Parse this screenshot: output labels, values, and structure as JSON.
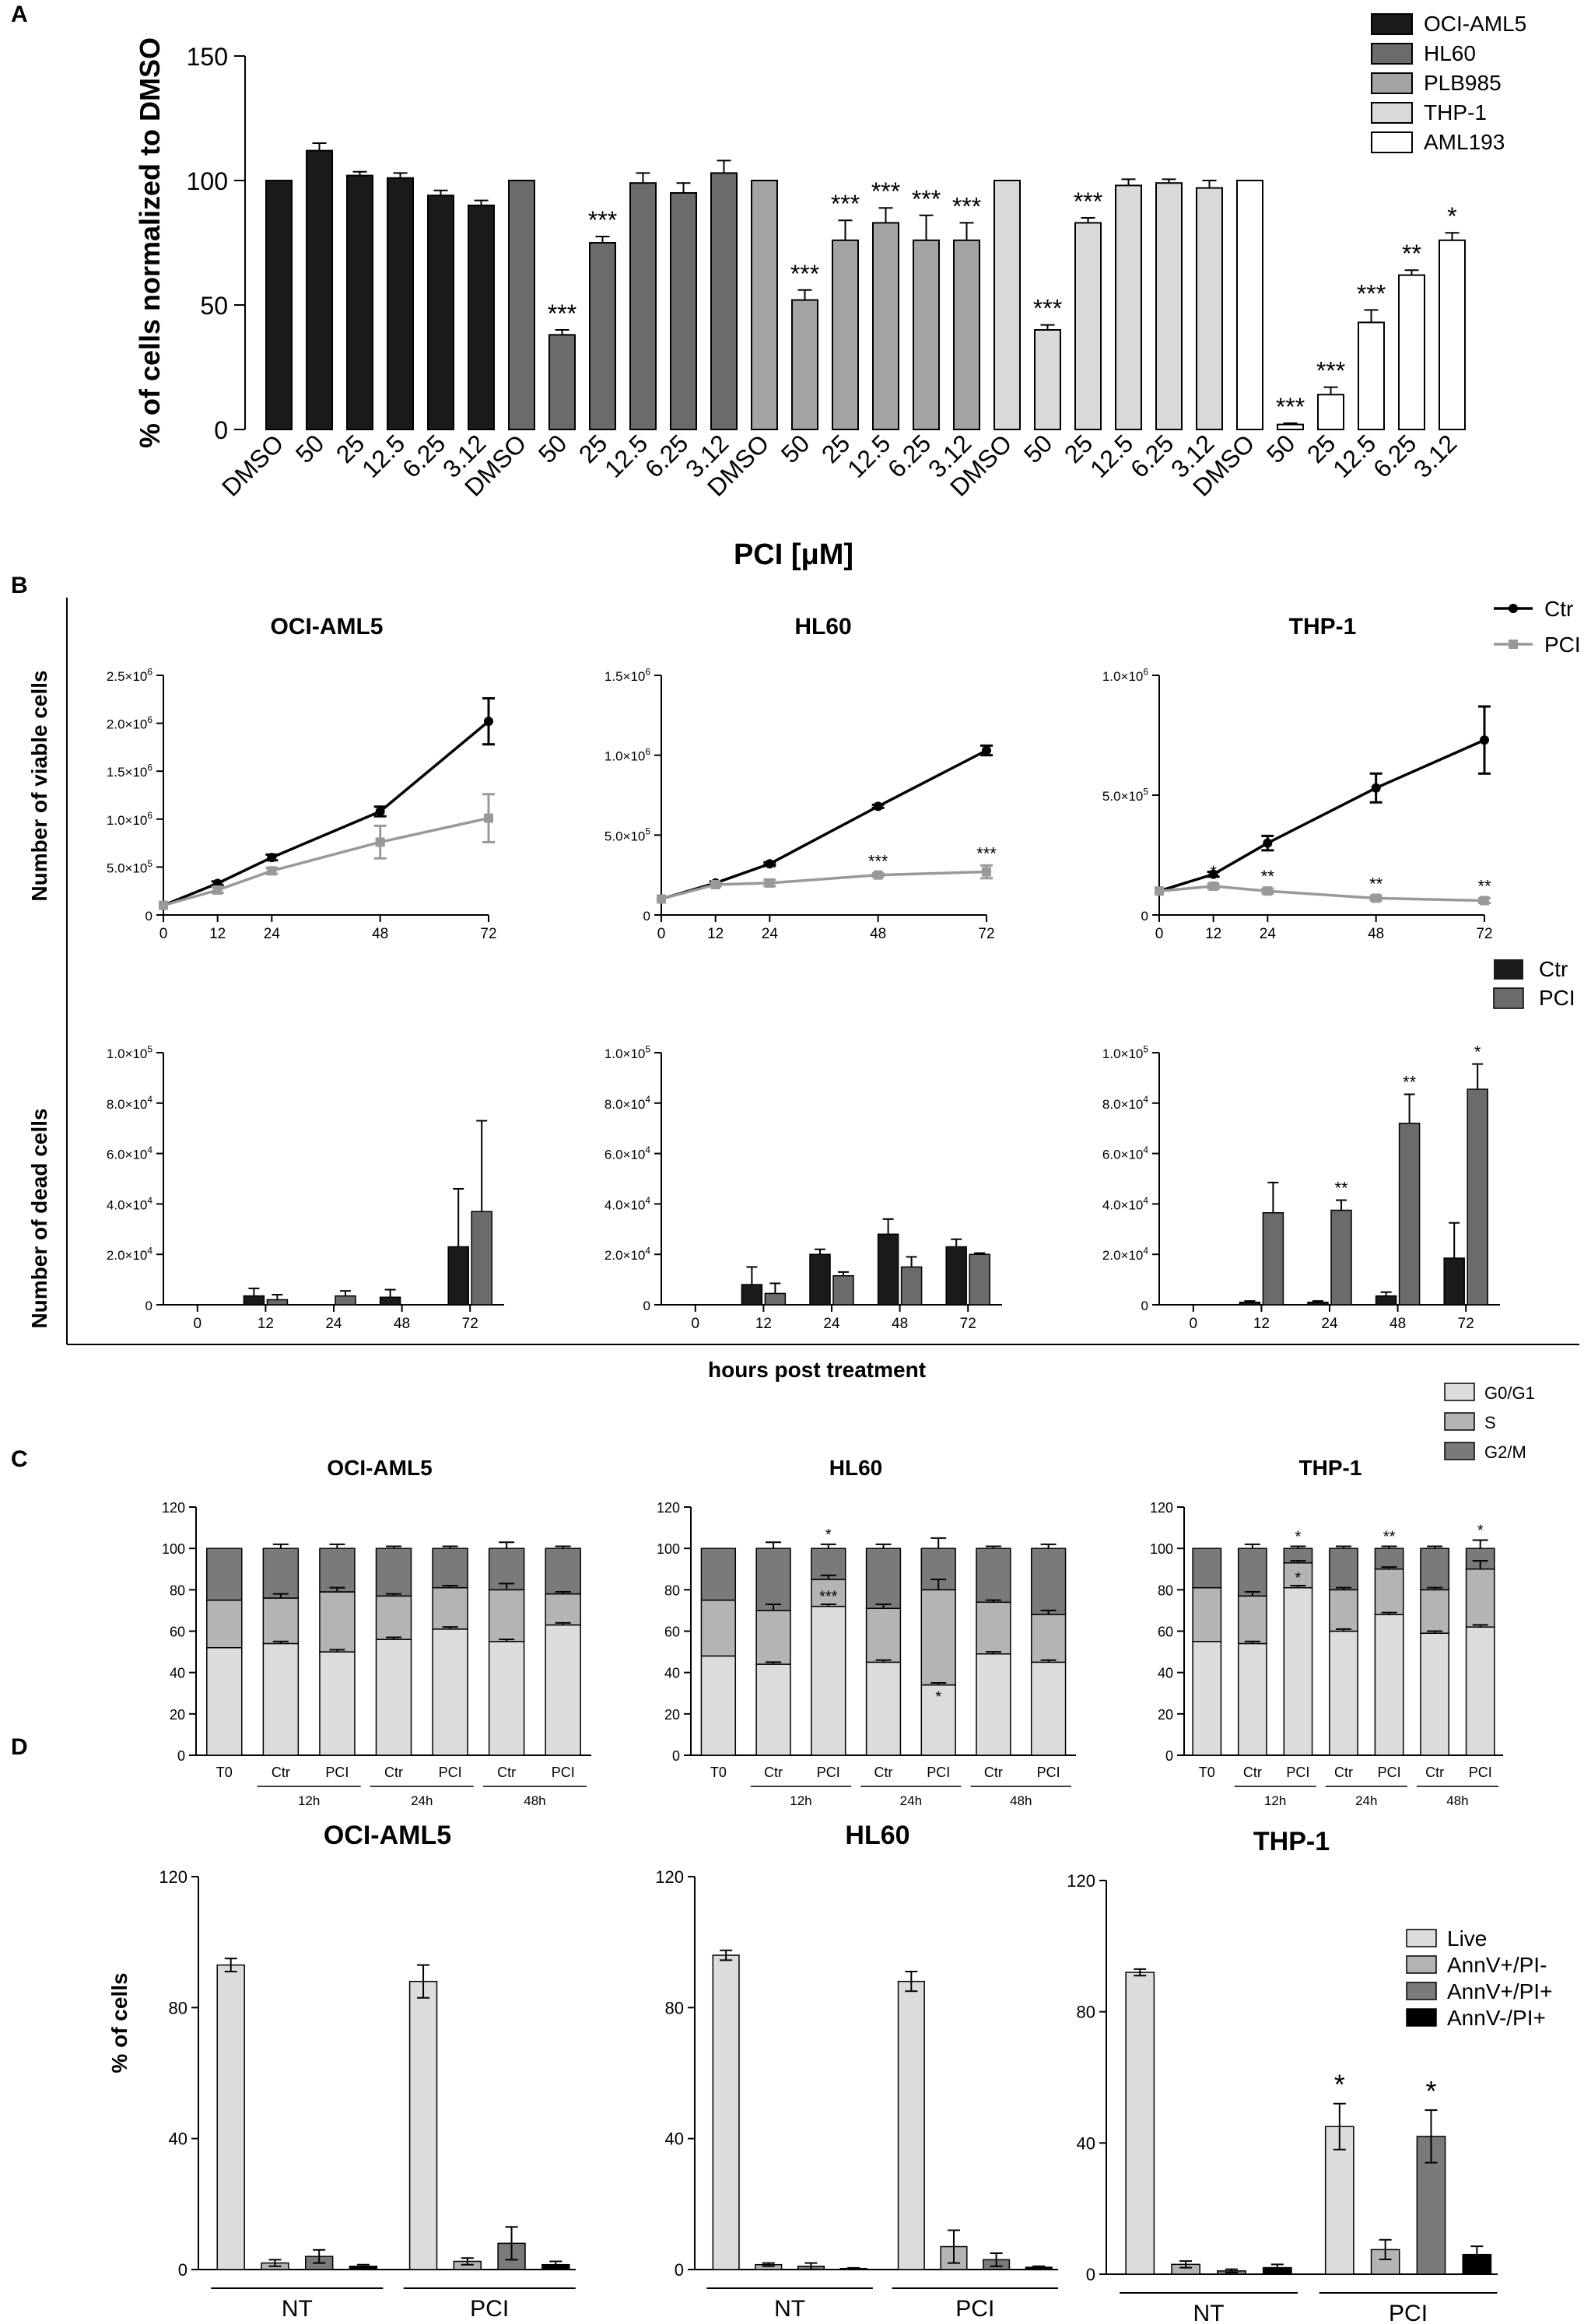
{
  "colors": {
    "bar_black": "#1a1a1a",
    "bar_dark": "#6b6b6b",
    "bar_mid": "#a3a3a3",
    "bar_light": "#d9d9d9",
    "bar_white": "#ffffff",
    "ctr_line": "#000000",
    "pci_line": "#999999",
    "g0g1": "#dcdcdc",
    "s_phase": "#b4b4b4",
    "g2m": "#7a7a7a",
    "live": "#dcdcdc",
    "annv_pi_neg": "#b4b4b4",
    "annv_pi_pos": "#7a7a7a",
    "annvneg_pi_pos": "#000000"
  },
  "panel_labels": [
    "A",
    "B",
    "C",
    "D"
  ],
  "chart_data": [
    {
      "id": "A",
      "type": "bar",
      "ylabel": "% of cells normalized to DMSO",
      "xlabel": "PCI [μM]",
      "yticks": [
        "0",
        "50",
        "100",
        "150"
      ],
      "ylim": [
        0,
        150
      ],
      "categories": [
        "DMSO",
        "50",
        "25",
        "12.5",
        "6.25",
        "3.12"
      ],
      "legend": [
        "OCI-AML5",
        "HL60",
        "PLB985",
        "THP-1",
        "AML193"
      ],
      "series": [
        {
          "name": "OCI-AML5",
          "values": [
            100,
            112,
            102,
            101,
            94,
            90
          ],
          "errors": [
            0,
            3,
            1.5,
            2,
            2,
            2
          ],
          "sig": [
            "",
            "",
            "",
            "",
            "",
            ""
          ]
        },
        {
          "name": "HL60",
          "values": [
            100,
            38,
            75,
            99,
            95,
            103
          ],
          "errors": [
            0,
            2,
            2.5,
            4,
            4,
            5
          ],
          "sig": [
            "",
            "***",
            "***",
            "",
            "",
            ""
          ]
        },
        {
          "name": "PLB985",
          "values": [
            100,
            52,
            76,
            83,
            76,
            76
          ],
          "errors": [
            0,
            4,
            8,
            6,
            10,
            7
          ],
          "sig": [
            "",
            "***",
            "***",
            "***",
            "***",
            "***"
          ]
        },
        {
          "name": "THP-1",
          "values": [
            100,
            40,
            83,
            98,
            99,
            97
          ],
          "errors": [
            0,
            2,
            2,
            2.5,
            1.5,
            3
          ],
          "sig": [
            "",
            "***",
            "***",
            "",
            "",
            ""
          ]
        },
        {
          "name": "AML193",
          "values": [
            100,
            2,
            14,
            43,
            62,
            76
          ],
          "errors": [
            0,
            0.5,
            3,
            5,
            2,
            3
          ],
          "sig": [
            "",
            "***",
            "***",
            "***",
            "**",
            "*"
          ]
        }
      ]
    },
    {
      "id": "B-viable",
      "type": "line",
      "ylabel": "Number of viable cells",
      "xlabel": "hours post treatment",
      "legend": [
        "Ctr",
        "PCI"
      ],
      "x": [
        0,
        12,
        24,
        48,
        72
      ],
      "xticks": [
        "0",
        "12",
        "24",
        "48",
        "72"
      ],
      "panels": [
        {
          "title": "OCI-AML5",
          "ylim": [
            0,
            2500000
          ],
          "yticks": [
            {
              "v": 0,
              "m": "0",
              "e": ""
            },
            {
              "v": 500000,
              "m": "5.0×10",
              "e": "5"
            },
            {
              "v": 1000000,
              "m": "1.0×10",
              "e": "6"
            },
            {
              "v": 1500000,
              "m": "1.5×10",
              "e": "6"
            },
            {
              "v": 2000000,
              "m": "2.0×10",
              "e": "6"
            },
            {
              "v": 2500000,
              "m": "2.5×10",
              "e": "6"
            }
          ],
          "series": [
            {
              "name": "Ctr",
              "values": [
                100000,
                330000,
                600000,
                1080000,
                2020000
              ],
              "errors": [
                0,
                20000,
                30000,
                50000,
                240000
              ],
              "sig": [
                "",
                "",
                "",
                "",
                ""
              ]
            },
            {
              "name": "PCI",
              "values": [
                100000,
                260000,
                460000,
                760000,
                1010000
              ],
              "errors": [
                0,
                30000,
                30000,
                170000,
                250000
              ],
              "sig": [
                "",
                "",
                "",
                "",
                ""
              ]
            }
          ]
        },
        {
          "title": "HL60",
          "ylim": [
            0,
            1500000
          ],
          "yticks": [
            {
              "v": 0,
              "m": "0",
              "e": ""
            },
            {
              "v": 500000,
              "m": "5.0×10",
              "e": "5"
            },
            {
              "v": 1000000,
              "m": "1.0×10",
              "e": "6"
            },
            {
              "v": 1500000,
              "m": "1.5×10",
              "e": "6"
            }
          ],
          "series": [
            {
              "name": "Ctr",
              "values": [
                100000,
                200000,
                320000,
                680000,
                1030000
              ],
              "errors": [
                0,
                10000,
                10000,
                10000,
                30000
              ],
              "sig": [
                "",
                "",
                "",
                "",
                ""
              ]
            },
            {
              "name": "PCI",
              "values": [
                100000,
                190000,
                200000,
                250000,
                270000
              ],
              "errors": [
                0,
                10000,
                20000,
                10000,
                40000
              ],
              "sig": [
                "",
                "",
                "**",
                "***",
                "***"
              ]
            }
          ]
        },
        {
          "title": "THP-1",
          "ylim": [
            0,
            1000000
          ],
          "yticks": [
            {
              "v": 0,
              "m": "0",
              "e": ""
            },
            {
              "v": 500000,
              "m": "5.0×10",
              "e": "5"
            },
            {
              "v": 1000000,
              "m": "1.0×10",
              "e": "6"
            }
          ],
          "series": [
            {
              "name": "Ctr",
              "values": [
                100000,
                170000,
                300000,
                530000,
                730000
              ],
              "errors": [
                0,
                10000,
                30000,
                60000,
                140000
              ],
              "sig": [
                "",
                "",
                "",
                "",
                ""
              ]
            },
            {
              "name": "PCI",
              "values": [
                100000,
                120000,
                100000,
                70000,
                60000
              ],
              "errors": [
                0,
                10000,
                10000,
                10000,
                10000
              ],
              "sig": [
                "",
                "*",
                "**",
                "**",
                "**"
              ]
            }
          ]
        }
      ]
    },
    {
      "id": "B-dead",
      "type": "bar",
      "ylabel": "Number of dead cells",
      "legend": [
        "Ctr",
        "PCI"
      ],
      "categories": [
        "0",
        "12",
        "24",
        "48",
        "72"
      ],
      "ylim": [
        0,
        100000
      ],
      "yticks": [
        {
          "v": 0,
          "m": "0",
          "e": ""
        },
        {
          "v": 20000,
          "m": "2.0×10",
          "e": "4"
        },
        {
          "v": 40000,
          "m": "4.0×10",
          "e": "4"
        },
        {
          "v": 60000,
          "m": "6.0×10",
          "e": "4"
        },
        {
          "v": 80000,
          "m": "8.0×10",
          "e": "4"
        },
        {
          "v": 100000,
          "m": "1.0×10",
          "e": "5"
        }
      ],
      "panels": [
        {
          "title": "OCI-AML5",
          "series": [
            {
              "name": "Ctr",
              "values": [
                0,
                3500,
                0,
                3000,
                23000
              ],
              "errors": [
                0,
                3000,
                0,
                3000,
                23000
              ],
              "sig": [
                "",
                "",
                "",
                "",
                ""
              ]
            },
            {
              "name": "PCI",
              "values": [
                0,
                2000,
                3500,
                0,
                37000
              ],
              "errors": [
                0,
                2000,
                2000,
                0,
                36000
              ],
              "sig": [
                "",
                "",
                "",
                "",
                ""
              ]
            }
          ]
        },
        {
          "title": "HL60",
          "series": [
            {
              "name": "Ctr",
              "values": [
                0,
                8000,
                20000,
                28000,
                23000
              ],
              "errors": [
                0,
                7000,
                2000,
                6000,
                3000
              ],
              "sig": [
                "",
                "",
                "",
                "",
                ""
              ]
            },
            {
              "name": "PCI",
              "values": [
                0,
                4500,
                11500,
                15000,
                20000
              ],
              "errors": [
                0,
                4000,
                1500,
                4000,
                500
              ],
              "sig": [
                "",
                "",
                "",
                "",
                ""
              ]
            }
          ]
        },
        {
          "title": "THP-1",
          "series": [
            {
              "name": "Ctr",
              "values": [
                0,
                1000,
                1000,
                3500,
                18500
              ],
              "errors": [
                0,
                500,
                500,
                1500,
                14000
              ],
              "sig": [
                "",
                "",
                "",
                "",
                ""
              ]
            },
            {
              "name": "PCI",
              "values": [
                0,
                36500,
                37500,
                72000,
                85500
              ],
              "errors": [
                0,
                12000,
                4000,
                11500,
                10000
              ],
              "sig": [
                "",
                "",
                "**",
                "**",
                "*"
              ]
            }
          ]
        }
      ]
    },
    {
      "id": "C",
      "type": "bar",
      "ylabel": "% of cells",
      "legend": [
        "G0/G1",
        "S",
        "G2/M"
      ],
      "categories": [
        "T0",
        "Ctr",
        "PCI",
        "Ctr",
        "PCI",
        "Ctr",
        "PCI"
      ],
      "groups": [
        "12h",
        "24h",
        "48h"
      ],
      "ylim": [
        0,
        120
      ],
      "yticks": [
        "0",
        "20",
        "40",
        "60",
        "80",
        "100",
        "120"
      ],
      "panels": [
        {
          "title": "OCI-AML5",
          "g0g1": [
            52,
            54,
            50,
            56,
            61,
            55,
            63
          ],
          "s_top": [
            75,
            76,
            79,
            77,
            81,
            80,
            78
          ],
          "total": [
            100,
            100,
            100,
            100,
            100,
            100,
            100
          ],
          "errors_top": [
            0,
            2,
            2,
            1,
            1,
            3,
            1
          ],
          "sig_top": [
            "",
            "",
            "",
            "",
            "",
            "",
            ""
          ],
          "sig_mid": [
            "",
            "",
            "",
            "",
            "",
            "",
            ""
          ],
          "sig_low": [
            "",
            "",
            "",
            "",
            "",
            "",
            ""
          ]
        },
        {
          "title": "HL60",
          "g0g1": [
            48,
            44,
            72,
            45,
            34,
            49,
            45
          ],
          "s_top": [
            75,
            70,
            85,
            71,
            80,
            74,
            68
          ],
          "total": [
            100,
            100,
            100,
            100,
            100,
            100,
            100
          ],
          "errors_top": [
            0,
            3,
            2,
            2,
            5,
            1,
            2
          ],
          "sig_top": [
            "",
            "",
            "*",
            "",
            "",
            "",
            ""
          ],
          "sig_mid": [
            "",
            "",
            "***",
            "",
            "",
            "",
            ""
          ],
          "sig_low": [
            "",
            "",
            "",
            "",
            "*",
            "",
            ""
          ]
        },
        {
          "title": "THP-1",
          "g0g1": [
            55,
            54,
            81,
            60,
            68,
            59,
            62
          ],
          "s_top": [
            81,
            77,
            93,
            80,
            90,
            80,
            90
          ],
          "total": [
            100,
            100,
            100,
            100,
            100,
            100,
            100
          ],
          "errors_top": [
            0,
            2,
            1,
            1,
            1,
            1,
            4
          ],
          "sig_top": [
            "",
            "",
            "*",
            "",
            "**",
            "",
            "*"
          ],
          "sig_mid": [
            "",
            "",
            "*",
            "",
            "",
            "",
            ""
          ],
          "sig_low": [
            "",
            "",
            "",
            "",
            "",
            "",
            ""
          ]
        }
      ]
    },
    {
      "id": "D",
      "type": "bar",
      "ylabel": "% of cells",
      "legend": [
        "Live",
        "AnnV+/PI-",
        "AnnV+/PI+",
        "AnnV-/PI+"
      ],
      "groups": [
        "NT",
        "PCI"
      ],
      "ylim": [
        0,
        120
      ],
      "yticks": [
        "0",
        "40",
        "80",
        "120"
      ],
      "panels": [
        {
          "title": "OCI-AML5",
          "NT": [
            93,
            2,
            4,
            1
          ],
          "NT_err": [
            2,
            1,
            2,
            0.5
          ],
          "PCI": [
            88,
            2.5,
            8,
            1.5
          ],
          "PCI_err": [
            5,
            1,
            5,
            1
          ],
          "NT_sig": [
            "",
            "",
            "",
            ""
          ],
          "PCI_sig": [
            "",
            "",
            "",
            ""
          ]
        },
        {
          "title": "HL60",
          "NT": [
            96,
            1.5,
            1,
            0.3
          ],
          "NT_err": [
            1.5,
            0.5,
            1,
            0.2
          ],
          "PCI": [
            88,
            7,
            3,
            0.7
          ],
          "PCI_err": [
            3,
            5,
            2,
            0.3
          ],
          "NT_sig": [
            "",
            "",
            "",
            ""
          ],
          "PCI_sig": [
            "",
            "",
            "",
            ""
          ]
        },
        {
          "title": "THP-1",
          "NT": [
            92,
            3,
            1,
            2
          ],
          "NT_err": [
            1,
            1,
            0.5,
            1
          ],
          "PCI": [
            45,
            7.5,
            42,
            6
          ],
          "PCI_err": [
            7,
            3,
            8,
            2.5
          ],
          "NT_sig": [
            "",
            "",
            "",
            ""
          ],
          "PCI_sig": [
            "*",
            "",
            "*",
            ""
          ]
        }
      ]
    }
  ]
}
